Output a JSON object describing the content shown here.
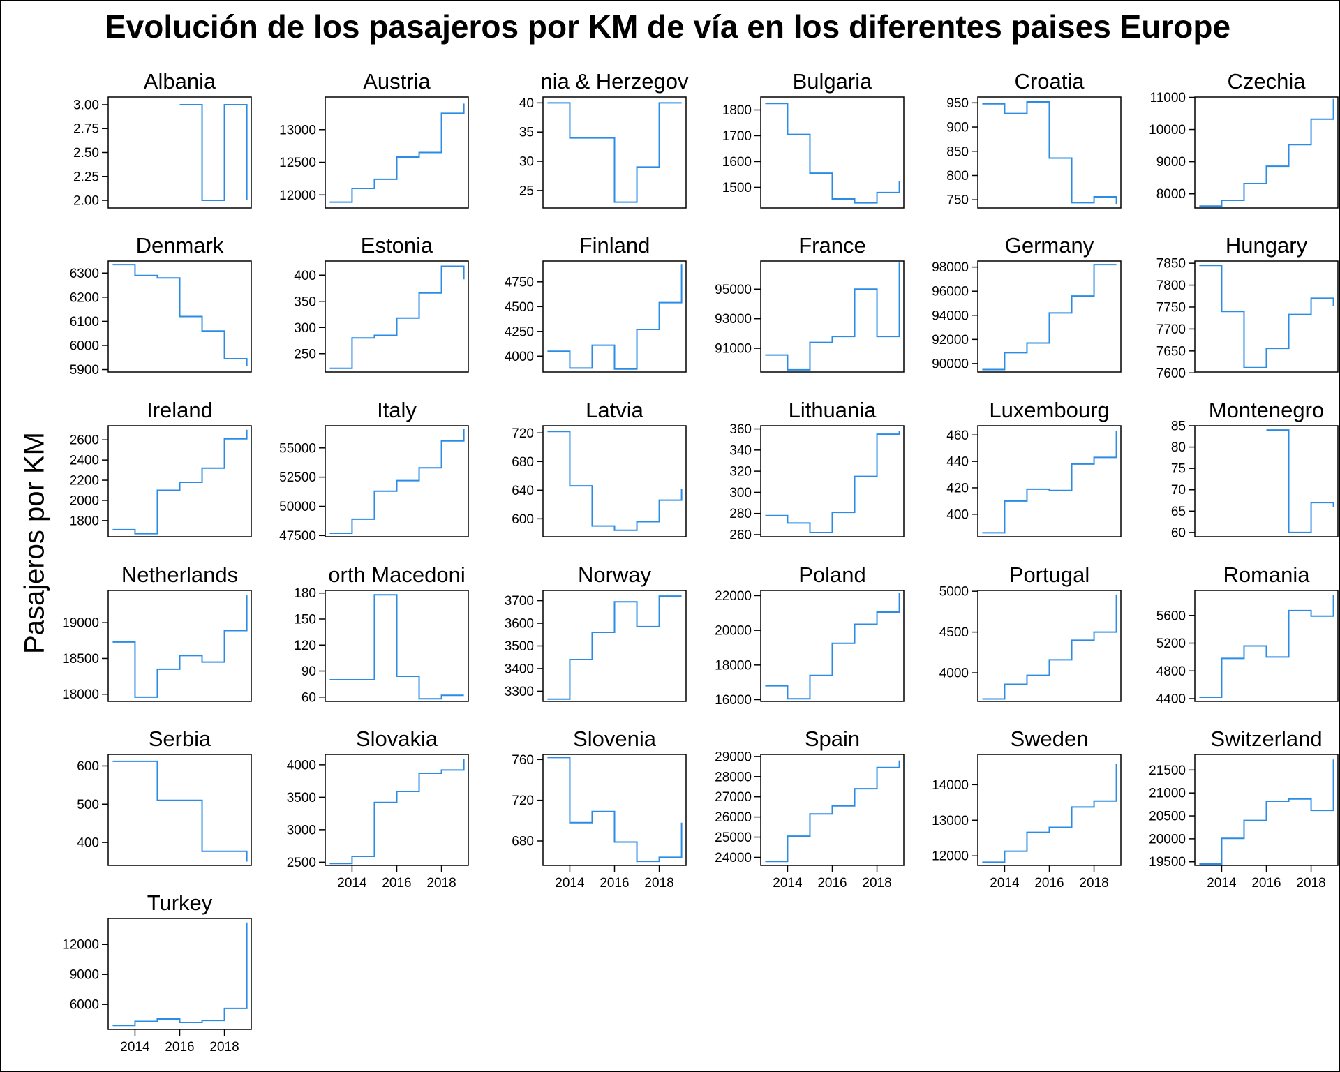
{
  "chart_data": {
    "type": "line",
    "step": "post",
    "title": "Evolución de los pasajeros por KM de vía en los diferentes paises Europe",
    "ylabel": "Pasajeros por KM",
    "xlabel": "",
    "x_ticks": [
      2014,
      2016,
      2018
    ],
    "line_color": "#2b8ce6",
    "grid": false,
    "panels": [
      {
        "name": "Albania",
        "title": "Albania",
        "x": [
          2016,
          2017,
          2018,
          2019
        ],
        "y": [
          3,
          2,
          3,
          2
        ],
        "ylim": [
          1.92,
          3.08
        ],
        "yticks": [
          "2.00",
          "2.25",
          "2.50",
          "2.75",
          "3.00"
        ]
      },
      {
        "name": "Austria",
        "title": "Austria",
        "x": [
          2013,
          2014,
          2015,
          2016,
          2017,
          2018,
          2019
        ],
        "y": [
          11890,
          12100,
          12240,
          12580,
          12650,
          13250,
          13400
        ],
        "ylim": [
          11800,
          13500
        ],
        "yticks": [
          12000,
          12500,
          13000
        ]
      },
      {
        "name": "Bosnia & Herzegovina",
        "title": "nia & Herzegov",
        "x": [
          2013,
          2014,
          2015,
          2016,
          2017,
          2018,
          2019
        ],
        "y": [
          40,
          34,
          34,
          23,
          29,
          40,
          40
        ],
        "ylim": [
          22,
          41
        ],
        "yticks": [
          25,
          30,
          35,
          40
        ]
      },
      {
        "name": "Bulgaria",
        "title": "Bulgaria",
        "x": [
          2013,
          2014,
          2015,
          2016,
          2017,
          2018,
          2019
        ],
        "y": [
          1825,
          1705,
          1555,
          1455,
          1440,
          1480,
          1525
        ],
        "ylim": [
          1420,
          1850
        ],
        "yticks": [
          1500,
          1600,
          1700,
          1800
        ]
      },
      {
        "name": "Croatia",
        "title": "Croatia",
        "x": [
          2013,
          2014,
          2015,
          2016,
          2017,
          2018,
          2019
        ],
        "y": [
          948,
          928,
          952,
          836,
          744,
          756,
          740
        ],
        "ylim": [
          733,
          962
        ],
        "yticks": [
          750,
          800,
          850,
          900,
          950
        ]
      },
      {
        "name": "Czechia",
        "title": "Czechia",
        "x": [
          2013,
          2014,
          2015,
          2016,
          2017,
          2018,
          2019
        ],
        "y": [
          7620,
          7800,
          8320,
          8860,
          9530,
          10320,
          10950
        ],
        "ylim": [
          7560,
          11010
        ],
        "yticks": [
          8000,
          9000,
          10000,
          11000
        ]
      },
      {
        "name": "Denmark",
        "title": "Denmark",
        "x": [
          2013,
          2014,
          2015,
          2016,
          2017,
          2018,
          2019
        ],
        "y": [
          6335,
          6290,
          6280,
          6120,
          6060,
          5945,
          5915
        ],
        "ylim": [
          5890,
          6350
        ],
        "yticks": [
          5900,
          6000,
          6100,
          6200,
          6300
        ]
      },
      {
        "name": "Estonia",
        "title": "Estonia",
        "x": [
          2013,
          2014,
          2015,
          2016,
          2017,
          2018,
          2019
        ],
        "y": [
          222,
          280,
          285,
          318,
          366,
          417,
          392
        ],
        "ylim": [
          215,
          427
        ],
        "yticks": [
          250,
          300,
          350,
          400
        ]
      },
      {
        "name": "Finland",
        "title": "Finland",
        "x": [
          2013,
          2014,
          2015,
          2016,
          2017,
          2018,
          2019
        ],
        "y": [
          4050,
          3880,
          4110,
          3870,
          4270,
          4540,
          4930
        ],
        "ylim": [
          3840,
          4960
        ],
        "yticks": [
          4000,
          4250,
          4500,
          4750
        ]
      },
      {
        "name": "France",
        "title": "France",
        "x": [
          2013,
          2014,
          2015,
          2016,
          2017,
          2018,
          2019
        ],
        "y": [
          90550,
          89550,
          91400,
          91800,
          95000,
          91800,
          96800
        ],
        "ylim": [
          89400,
          96900
        ],
        "yticks": [
          91000,
          93000,
          95000
        ]
      },
      {
        "name": "Germany",
        "title": "Germany",
        "x": [
          2013,
          2014,
          2015,
          2016,
          2017,
          2018,
          2019
        ],
        "y": [
          89500,
          90900,
          91700,
          94200,
          95600,
          98200,
          98200
        ],
        "ylim": [
          89300,
          98500
        ],
        "yticks": [
          90000,
          92000,
          94000,
          96000,
          98000
        ]
      },
      {
        "name": "Hungary",
        "title": "Hungary",
        "x": [
          2013,
          2014,
          2015,
          2016,
          2017,
          2018,
          2019
        ],
        "y": [
          7845,
          7740,
          7612,
          7656,
          7733,
          7770,
          7752
        ],
        "ylim": [
          7602,
          7855
        ],
        "yticks": [
          7600,
          7650,
          7700,
          7750,
          7800,
          7850
        ]
      },
      {
        "name": "Ireland",
        "title": "Ireland",
        "x": [
          2013,
          2014,
          2015,
          2016,
          2017,
          2018,
          2019
        ],
        "y": [
          1710,
          1670,
          2100,
          2180,
          2320,
          2610,
          2700
        ],
        "ylim": [
          1640,
          2740
        ],
        "yticks": [
          1800,
          2000,
          2200,
          2400,
          2600
        ]
      },
      {
        "name": "Italy",
        "title": "Italy",
        "x": [
          2013,
          2014,
          2015,
          2016,
          2017,
          2018,
          2019
        ],
        "y": [
          47700,
          48900,
          51300,
          52200,
          53300,
          55600,
          56600
        ],
        "ylim": [
          47400,
          56900
        ],
        "yticks": [
          47500,
          50000,
          52500,
          55000
        ]
      },
      {
        "name": "Latvia",
        "title": "Latvia",
        "x": [
          2013,
          2014,
          2015,
          2016,
          2017,
          2018,
          2019
        ],
        "y": [
          722,
          646,
          590,
          584,
          596,
          626,
          642
        ],
        "ylim": [
          575,
          730
        ],
        "yticks": [
          600,
          640,
          680,
          720
        ]
      },
      {
        "name": "Lithuania",
        "title": "Lithuania",
        "x": [
          2013,
          2014,
          2015,
          2016,
          2017,
          2018,
          2019
        ],
        "y": [
          278,
          271,
          262,
          281,
          315,
          355,
          358
        ],
        "ylim": [
          258,
          363
        ],
        "yticks": [
          260,
          280,
          300,
          320,
          340,
          360
        ]
      },
      {
        "name": "Luxembourg",
        "title": "Luxembourg",
        "x": [
          2013,
          2014,
          2015,
          2016,
          2017,
          2018,
          2019
        ],
        "y": [
          386,
          410,
          419,
          418,
          438,
          443,
          463
        ],
        "ylim": [
          383,
          467
        ],
        "yticks": [
          400,
          420,
          440,
          460
        ]
      },
      {
        "name": "Montenegro",
        "title": "Montenegro",
        "x": [
          2016,
          2017,
          2018,
          2019
        ],
        "y": [
          84,
          60,
          67,
          66
        ],
        "ylim": [
          59,
          85
        ],
        "yticks": [
          60,
          65,
          70,
          75,
          80,
          85
        ]
      },
      {
        "name": "Netherlands",
        "title": "Netherlands",
        "x": [
          2013,
          2014,
          2015,
          2016,
          2017,
          2018,
          2019
        ],
        "y": [
          18730,
          17960,
          18350,
          18540,
          18450,
          18890,
          19380
        ],
        "ylim": [
          17900,
          19450
        ],
        "yticks": [
          18000,
          18500,
          19000
        ]
      },
      {
        "name": "North Macedonia",
        "title": "orth Macedoni",
        "x": [
          2013,
          2014,
          2015,
          2016,
          2017,
          2018,
          2019
        ],
        "y": [
          80,
          80,
          178,
          84,
          58,
          62,
          62
        ],
        "ylim": [
          55,
          183
        ],
        "yticks": [
          60,
          90,
          120,
          150,
          180
        ]
      },
      {
        "name": "Norway",
        "title": "Norway",
        "x": [
          2013,
          2014,
          2015,
          2016,
          2017,
          2018,
          2019
        ],
        "y": [
          3265,
          3440,
          3560,
          3695,
          3585,
          3720,
          3720
        ],
        "ylim": [
          3255,
          3745
        ],
        "yticks": [
          3300,
          3400,
          3500,
          3600,
          3700
        ]
      },
      {
        "name": "Poland",
        "title": "Poland",
        "x": [
          2013,
          2014,
          2015,
          2016,
          2017,
          2018,
          2019
        ],
        "y": [
          16800,
          16050,
          17400,
          19250,
          20350,
          21050,
          22150
        ],
        "ylim": [
          15900,
          22300
        ],
        "yticks": [
          16000,
          18000,
          20000,
          22000
        ]
      },
      {
        "name": "Portugal",
        "title": "Portugal",
        "x": [
          2013,
          2014,
          2015,
          2016,
          2017,
          2018,
          2019
        ],
        "y": [
          3680,
          3860,
          3970,
          4160,
          4400,
          4500,
          4960
        ],
        "ylim": [
          3650,
          5010
        ],
        "yticks": [
          4000,
          4500,
          5000
        ]
      },
      {
        "name": "Romania",
        "title": "Romania",
        "x": [
          2013,
          2014,
          2015,
          2016,
          2017,
          2018,
          2019
        ],
        "y": [
          4420,
          4980,
          5160,
          5000,
          5670,
          5590,
          5900
        ],
        "ylim": [
          4360,
          5960
        ],
        "yticks": [
          4400,
          4800,
          5200,
          5600
        ]
      },
      {
        "name": "Serbia",
        "title": "Serbia",
        "x": [
          2013,
          2014,
          2015,
          2016,
          2017,
          2018,
          2019
        ],
        "y": [
          612,
          612,
          510,
          510,
          377,
          377,
          350
        ],
        "ylim": [
          340,
          630
        ],
        "yticks": [
          400,
          500,
          600
        ]
      },
      {
        "name": "Slovakia",
        "title": "Slovakia",
        "x": [
          2013,
          2014,
          2015,
          2016,
          2017,
          2018,
          2019
        ],
        "y": [
          2480,
          2590,
          3420,
          3590,
          3870,
          3920,
          4090
        ],
        "ylim": [
          2450,
          4160
        ],
        "yticks": [
          2500,
          3000,
          3500,
          4000
        ]
      },
      {
        "name": "Slovenia",
        "title": "Slovenia",
        "x": [
          2013,
          2014,
          2015,
          2016,
          2017,
          2018,
          2019
        ],
        "y": [
          762,
          698,
          709,
          679,
          660,
          664,
          698
        ],
        "ylim": [
          656,
          765
        ],
        "yticks": [
          680,
          720,
          760
        ]
      },
      {
        "name": "Spain",
        "title": "Spain",
        "x": [
          2013,
          2014,
          2015,
          2016,
          2017,
          2018,
          2019
        ],
        "y": [
          23800,
          25050,
          26150,
          26550,
          27400,
          28450,
          28800
        ],
        "ylim": [
          23600,
          29100
        ],
        "yticks": [
          24000,
          25000,
          26000,
          27000,
          28000,
          29000
        ]
      },
      {
        "name": "Sweden",
        "title": "Sweden",
        "x": [
          2013,
          2014,
          2015,
          2016,
          2017,
          2018,
          2019
        ],
        "y": [
          11820,
          12130,
          12660,
          12800,
          13370,
          13540,
          14580
        ],
        "ylim": [
          11730,
          14850
        ],
        "yticks": [
          12000,
          13000,
          14000
        ]
      },
      {
        "name": "Switzerland",
        "title": "Switzerland",
        "x": [
          2013,
          2014,
          2015,
          2016,
          2017,
          2018,
          2019
        ],
        "y": [
          19450,
          20010,
          20400,
          20820,
          20870,
          20620,
          21730
        ],
        "ylim": [
          19420,
          21840
        ],
        "yticks": [
          19500,
          20000,
          20500,
          21000,
          21500
        ]
      },
      {
        "name": "Turkey",
        "title": "Turkey",
        "x": [
          2013,
          2014,
          2015,
          2016,
          2017,
          2018,
          2019
        ],
        "y": [
          3900,
          4300,
          4550,
          4200,
          4400,
          5600,
          14200
        ],
        "ylim": [
          3500,
          14600
        ],
        "yticks": [
          6000,
          9000,
          12000
        ]
      }
    ]
  }
}
